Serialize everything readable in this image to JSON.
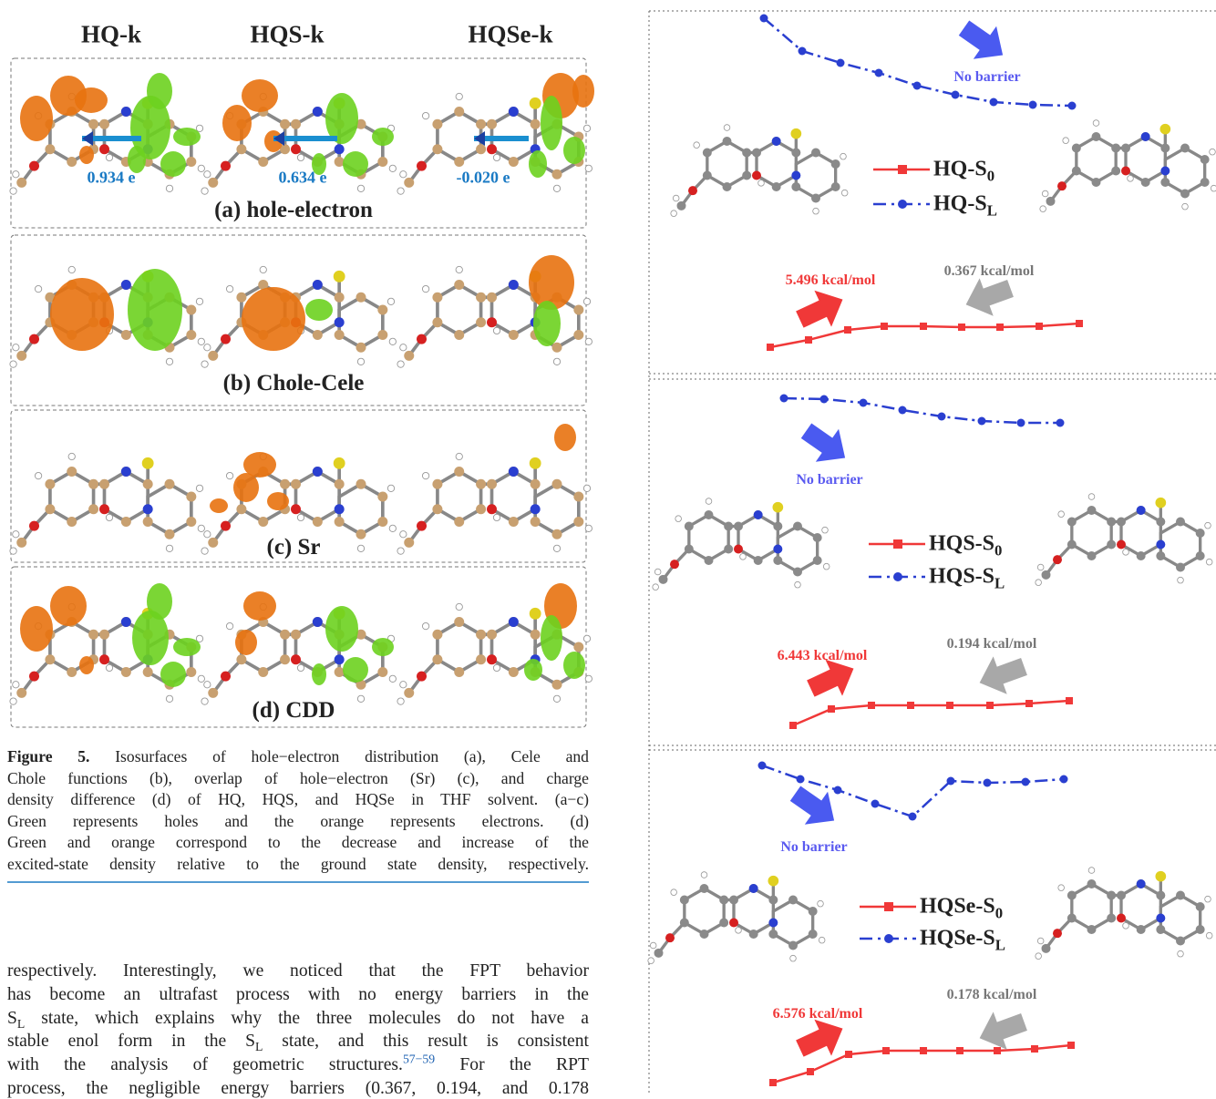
{
  "figure_left": {
    "headers": [
      "HQ-k",
      "HQS-k",
      "HQSe-k"
    ],
    "panels": [
      {
        "label": "(a) hole-electron",
        "charges": [
          "0.934 e",
          "0.634 e",
          "-0.020 e"
        ]
      },
      {
        "label": "(b) Chole-Cele"
      },
      {
        "label": "(c) Sr"
      },
      {
        "label": "(d) CDD"
      }
    ]
  },
  "caption": {
    "lines": [
      [
        {
          "bold": "Figure 5."
        },
        " Isosurfaces of hole−electron distribution (a), Cele and"
      ],
      [
        "Chole functions (b), overlap of hole−electron (Sr) (c), and charge"
      ],
      [
        "density difference (d) of HQ, HQS, and HQSe in THF solvent. (a−c)"
      ],
      [
        "Green represents holes and the orange represents electrons. (d)"
      ],
      [
        "Green and orange correspond to the decrease and increase of the"
      ],
      [
        "excited-state density relative to the ground state density, respectively."
      ]
    ]
  },
  "body": {
    "lines": [
      [
        "respectively. Interestingly, we noticed that the FPT behavior"
      ],
      [
        "has become an ultrafast process with no energy barriers in the"
      ],
      [
        "S",
        {
          "sub": "L"
        },
        " state, which explains why the three molecules do not have a"
      ],
      [
        "stable enol form in the S",
        {
          "sub": "L"
        },
        " state, and this result is consistent"
      ],
      [
        "with the analysis of geometric structures.",
        {
          "sup": "57−59"
        },
        " For the RPT"
      ],
      [
        "process, the negligible energy barriers (0.367, 0.194, and 0.178"
      ]
    ]
  },
  "figure_right": {
    "panels": [
      {
        "legend": [
          {
            "text": "HQ-S",
            "sub": "0"
          },
          {
            "text": "HQ-S",
            "sub": "L"
          }
        ],
        "no_barrier": "No barrier",
        "barrier_forward": "5.496 kcal/mol",
        "barrier_reverse": "0.367 kcal/mol"
      },
      {
        "legend": [
          {
            "text": "HQS-S",
            "sub": "0"
          },
          {
            "text": "HQS-S",
            "sub": "L"
          }
        ],
        "no_barrier": "No barrier",
        "barrier_forward": "6.443 kcal/mol",
        "barrier_reverse": "0.194 kcal/mol"
      },
      {
        "legend": [
          {
            "text": "HQSe-S",
            "sub": "0"
          },
          {
            "text": "HQSe-S",
            "sub": "L"
          }
        ],
        "no_barrier": "No barrier",
        "barrier_forward": "6.576 kcal/mol",
        "barrier_reverse": "0.178 kcal/mol"
      }
    ]
  }
}
